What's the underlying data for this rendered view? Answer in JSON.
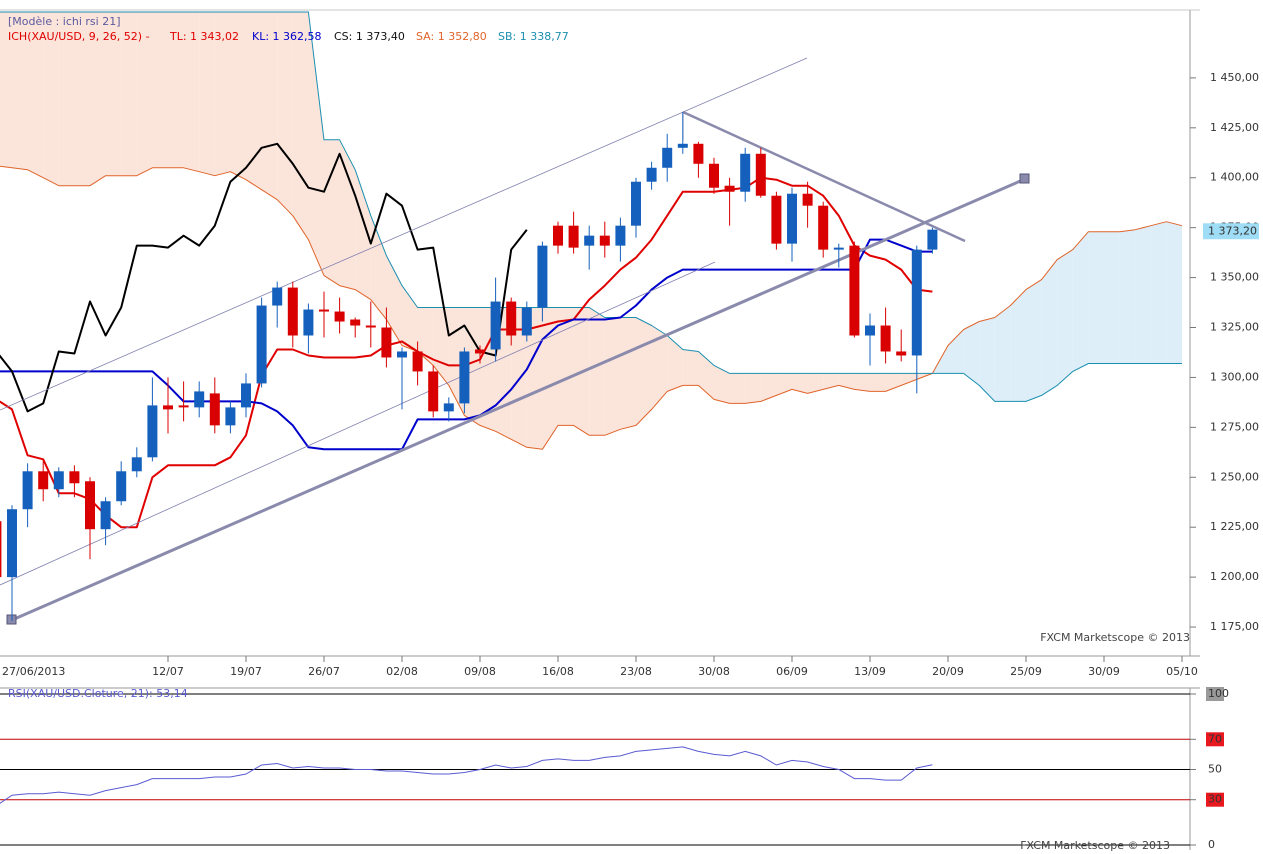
{
  "chart_data": [
    {
      "type": "candlestick",
      "header": "[Modèle : ichi rsi 21]",
      "indicator": "ICH(XAU/USD, 9, 26, 52) -",
      "readouts": [
        {
          "text": "TL: 1 343,02",
          "color": "#e00000"
        },
        {
          "text": "KL: 1 362,58",
          "color": "#0000cc"
        },
        {
          "text": "CS: 1 373,40",
          "color": "#111111"
        },
        {
          "text": "SA: 1 352,80",
          "color": "#e0642a"
        },
        {
          "text": "SB: 1 338,77",
          "color": "#1b8fb0"
        }
      ],
      "watermark": "FXCM Marketscope © 2013",
      "last_price": {
        "value": 1373.2,
        "label": "1 373,20",
        "color": "#9fdcf5"
      },
      "categories": [
        "27/06/2013",
        null,
        null,
        null,
        null,
        null,
        null,
        null,
        null,
        null,
        null,
        "12/07",
        null,
        null,
        null,
        null,
        "19/07",
        null,
        null,
        null,
        null,
        "26/07",
        null,
        null,
        null,
        null,
        "02/08",
        null,
        null,
        null,
        null,
        "09/08",
        null,
        null,
        null,
        null,
        "16/08",
        null,
        null,
        null,
        null,
        "23/08",
        null,
        null,
        null,
        null,
        "30/08",
        null,
        null,
        null,
        null,
        "06/09",
        null,
        null,
        null,
        null,
        "13/09",
        null,
        null,
        null,
        null,
        "20/09",
        null,
        null,
        null,
        null,
        "25/09",
        null,
        null,
        null,
        null,
        "30/09",
        null,
        null,
        null,
        null,
        "05/10"
      ],
      "open": [
        1228,
        1200,
        1234,
        1253,
        1244,
        1253,
        1248,
        1224,
        1238,
        1253,
        1260,
        1286,
        1286,
        1285,
        1292,
        1276,
        1285,
        1297,
        1336,
        1345,
        1321,
        1334,
        1333,
        1329,
        1326,
        1325,
        1310,
        1313,
        1303,
        1283,
        1287,
        1314,
        1314,
        1338,
        1321,
        1335,
        1376,
        1376,
        1366,
        1371,
        1366,
        1376,
        1398,
        1405,
        1415,
        1417,
        1407,
        1396,
        1393,
        1412,
        1391,
        1367,
        1392,
        1386,
        1364,
        1366,
        1321,
        1326,
        1313,
        1311,
        1364,
        null,
        null,
        null,
        null,
        null,
        null,
        null,
        null,
        null,
        null,
        null,
        null,
        null,
        null,
        null,
        null
      ],
      "high": [
        1230,
        1236,
        1257,
        1258,
        1255,
        1256,
        1250,
        1240,
        1258,
        1265,
        1300,
        1300,
        1298,
        1298,
        1300,
        1288,
        1302,
        1340,
        1348,
        1348,
        1337,
        1343,
        1340,
        1330,
        1338,
        1335,
        1315,
        1318,
        1306,
        1290,
        1315,
        1316,
        1350,
        1340,
        1338,
        1368,
        1378,
        1383,
        1376,
        1378,
        1380,
        1400,
        1408,
        1422,
        1433,
        1418,
        1410,
        1400,
        1415,
        1415,
        1393,
        1395,
        1398,
        1388,
        1367,
        1368,
        1332,
        1335,
        1324,
        1366,
        1375,
        null,
        null,
        null,
        null,
        null,
        null,
        null,
        null,
        null,
        null,
        null,
        null,
        null,
        null,
        null,
        null
      ],
      "low": [
        1198,
        1178,
        1225,
        1238,
        1240,
        1240,
        1209,
        1216,
        1236,
        1250,
        1258,
        1272,
        1278,
        1280,
        1272,
        1272,
        1280,
        1295,
        1325,
        1315,
        1312,
        1320,
        1322,
        1320,
        1315,
        1305,
        1284,
        1296,
        1280,
        1278,
        1282,
        1307,
        1308,
        1316,
        1318,
        1328,
        1362,
        1362,
        1354,
        1360,
        1358,
        1370,
        1394,
        1398,
        1412,
        1400,
        1392,
        1376,
        1388,
        1390,
        1364,
        1358,
        1375,
        1360,
        1355,
        1320,
        1306,
        1307,
        1308,
        1292,
        1362,
        null,
        null,
        null,
        null,
        null,
        null,
        null,
        null,
        null,
        null,
        null,
        null,
        null,
        null,
        null,
        null
      ],
      "close": [
        1200,
        1234,
        1253,
        1244,
        1253,
        1247,
        1224,
        1238,
        1253,
        1260,
        1286,
        1284,
        1285,
        1293,
        1276,
        1285,
        1297,
        1336,
        1345,
        1321,
        1334,
        1333,
        1328,
        1326,
        1325,
        1310,
        1313,
        1303,
        1283,
        1287,
        1313,
        1312,
        1338,
        1321,
        1335,
        1366,
        1366,
        1365,
        1371,
        1366,
        1376,
        1398,
        1405,
        1415,
        1417,
        1407,
        1395,
        1393,
        1412,
        1391,
        1367,
        1392,
        1386,
        1364,
        1365,
        1321,
        1326,
        1313,
        1311,
        1364,
        1374,
        null,
        null,
        null,
        null,
        null,
        null,
        null,
        null,
        null,
        null,
        null,
        null,
        null,
        null,
        null,
        null
      ],
      "up_color": "#1560bd",
      "down_color": "#d80000",
      "series": [
        {
          "color": "#e00000",
          "width": 2,
          "values": [
            1289,
            1284,
            1261,
            1259,
            1242,
            1242,
            1239,
            1231,
            1225,
            1225,
            1250,
            1256,
            1256,
            1256,
            1256,
            1260,
            1271,
            1301,
            1314,
            1314,
            1311,
            1310,
            1310,
            1310,
            1311,
            1316,
            1318,
            1313,
            1309,
            1306,
            1306,
            1309,
            1324,
            1324,
            1324,
            1326,
            1328,
            1329,
            1339,
            1346,
            1354,
            1360,
            1369,
            1381,
            1393,
            1393,
            1393,
            1394,
            1395,
            1400,
            1399,
            1396,
            1396,
            1391,
            1381,
            1366,
            1361,
            1359,
            1354,
            1344,
            1343,
            null,
            null,
            null,
            null,
            null,
            null,
            null,
            null,
            null,
            null,
            null,
            null,
            null,
            null,
            null,
            null
          ]
        },
        {
          "color": "#0000cc",
          "width": 2,
          "values": [
            1303,
            1303,
            1303,
            1303,
            1303,
            1303,
            1303,
            1303,
            1303,
            1303,
            1303,
            1296,
            1288,
            1288,
            1288,
            1288,
            1288,
            1287,
            1283,
            1276,
            1265,
            1264,
            1264,
            1264,
            1264,
            1264,
            1264,
            1279,
            1279,
            1279,
            1279,
            1281,
            1286,
            1294,
            1304,
            1319,
            1326,
            1329,
            1329,
            1329,
            1330,
            1336,
            1344,
            1350,
            1354,
            1354,
            1354,
            1354,
            1354,
            1354,
            1354,
            1354,
            1354,
            1354,
            1354,
            1354,
            1369,
            1369,
            1366,
            1363,
            1363,
            null,
            null,
            null,
            null,
            null,
            null,
            null,
            null,
            null,
            null,
            null,
            null,
            null,
            null,
            null,
            null
          ]
        },
        {
          "color": "#000000",
          "width": 2,
          "values": [
            1313,
            1303,
            1283,
            1287,
            1313,
            1312,
            1338,
            1321,
            1335,
            1366,
            1366,
            1365,
            1371,
            1366,
            1376,
            1398,
            1405,
            1415,
            1417,
            1407,
            1395,
            1393,
            1412,
            1391,
            1367,
            1392,
            1386,
            1364,
            1365,
            1321,
            1326,
            1313,
            1311,
            1364,
            1374,
            null,
            null,
            null,
            null,
            null,
            null,
            null,
            null,
            null,
            null,
            null,
            null,
            null,
            null,
            null,
            null,
            null,
            null,
            null,
            null,
            null,
            null,
            null,
            null,
            null,
            null,
            null,
            null,
            null,
            null,
            null,
            null,
            null,
            null,
            null,
            null,
            null,
            null,
            null,
            null,
            null,
            null
          ]
        },
        {
          "color": "#e0642a",
          "width": 1,
          "values": [
            1406,
            1405,
            1404,
            1400,
            1396,
            1396,
            1396,
            1401,
            1401,
            1401,
            1405,
            1405,
            1405,
            1403,
            1401,
            1403,
            1399,
            1394,
            1389,
            1381,
            1369,
            1351,
            1346,
            1344,
            1339,
            1329,
            1316,
            1313,
            1306,
            1296,
            1281,
            1276,
            1273,
            1269,
            1265,
            1264,
            1276,
            1276,
            1271,
            1271,
            1274,
            1276,
            1284,
            1293,
            1296,
            1296,
            1289,
            1287,
            1287,
            1288,
            1291,
            1294,
            1292,
            1294,
            1296,
            1294,
            1293,
            1293,
            1296,
            1299,
            1302,
            1316,
            1324,
            1328,
            1330,
            1336,
            1344,
            1349,
            1359,
            1364,
            1373,
            1373,
            1373,
            1374,
            1376,
            1378,
            1376
          ]
        },
        {
          "color": "#1b8fb0",
          "width": 1,
          "values": [
            1483,
            1483,
            1483,
            1483,
            1483,
            1483,
            1483,
            1483,
            1483,
            1483,
            1483,
            1483,
            1483,
            1483,
            1483,
            1483,
            1483,
            1483,
            1483,
            1483,
            1483,
            1419,
            1419,
            1404,
            1381,
            1361,
            1346,
            1335,
            1335,
            1335,
            1335,
            1335,
            1335,
            1335,
            1335,
            1335,
            1335,
            1335,
            1335,
            1330,
            1330,
            1330,
            1326,
            1321,
            1314,
            1313,
            1306,
            1302,
            1302,
            1302,
            1302,
            1302,
            1302,
            1302,
            1302,
            1302,
            1302,
            1302,
            1302,
            1302,
            1302,
            1302,
            1302,
            1296,
            1288,
            1288,
            1288,
            1291,
            1296,
            1303,
            1307,
            1307,
            1307,
            1307,
            1307,
            1307,
            1307
          ]
        }
      ],
      "cloud_colors": {
        "bearish": "#fbe4da",
        "bullish": "#ddeef8"
      },
      "ylim": [
        1161,
        1484
      ],
      "yticks": [
        {
          "value": 1175,
          "label": "1 175,00"
        },
        {
          "value": 1200,
          "label": "1 200,00"
        },
        {
          "value": 1225,
          "label": "1 225,00"
        },
        {
          "value": 1250,
          "label": "1 250,00"
        },
        {
          "value": 1275,
          "label": "1 275,00"
        },
        {
          "value": 1300,
          "label": "1 300,00"
        },
        {
          "value": 1325,
          "label": "1 325,00"
        },
        {
          "value": 1350,
          "label": "1 350,00"
        },
        {
          "value": 1375,
          "label": "1 375,00"
        },
        {
          "value": 1400,
          "label": "1 400,00"
        },
        {
          "value": 1425,
          "label": "1 425,00"
        },
        {
          "value": 1450,
          "label": "1 450,00"
        }
      ]
    },
    {
      "type": "line",
      "legend": "RSI(XAU/USD.Cloture, 21): 53,14",
      "watermark": "FXCM Marketscope © 2013",
      "color": "#5a5ad2",
      "values": [
        26,
        33,
        34,
        34,
        35,
        34,
        33,
        36,
        38,
        40,
        44,
        44,
        44,
        44,
        45,
        45,
        47,
        53,
        54,
        51,
        52,
        51,
        51,
        50,
        50,
        49,
        49,
        48,
        47,
        47,
        48,
        50,
        53,
        51,
        52,
        56,
        57,
        56,
        56,
        58,
        59,
        62,
        63,
        64,
        65,
        62,
        60,
        59,
        62,
        59,
        53,
        56,
        55,
        52,
        50,
        44,
        44,
        43,
        43,
        51,
        53.14
      ],
      "ylim": [
        0,
        100
      ],
      "yticks": [
        0,
        30,
        50,
        70,
        100
      ],
      "grid_colors": [
        "#000000",
        "#c00000",
        "#000000",
        "#c00000",
        "#000000"
      ],
      "tick_label_backgrounds": [
        null,
        "#e8181e",
        null,
        "#e8181e",
        "#9a9a9a"
      ]
    }
  ]
}
